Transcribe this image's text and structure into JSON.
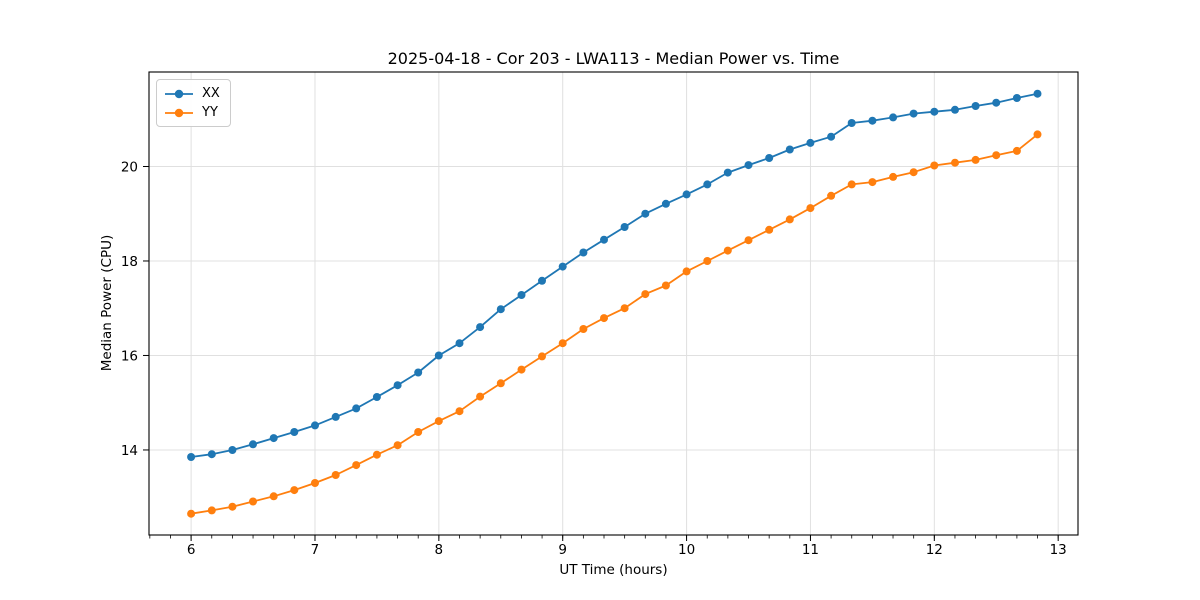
{
  "chart_data": {
    "type": "line",
    "title": "2025-04-18 - Cor 203 - LWA113 - Median Power vs. Time",
    "xlabel": "UT Time (hours)",
    "ylabel": "Median Power (CPU)",
    "x": [
      6.0,
      6.167,
      6.333,
      6.5,
      6.667,
      6.833,
      7.0,
      7.167,
      7.333,
      7.5,
      7.667,
      7.833,
      8.0,
      8.167,
      8.333,
      8.5,
      8.667,
      8.833,
      9.0,
      9.167,
      9.333,
      9.5,
      9.667,
      9.833,
      10.0,
      10.167,
      10.333,
      10.5,
      10.667,
      10.833,
      11.0,
      11.167,
      11.333,
      11.5,
      11.667,
      11.833,
      12.0,
      12.167,
      12.333,
      12.5,
      12.667,
      12.833
    ],
    "series": [
      {
        "name": "XX",
        "color": "#1f77b4",
        "values": [
          13.85,
          13.91,
          14.0,
          14.12,
          14.25,
          14.38,
          14.52,
          14.7,
          14.88,
          15.12,
          15.37,
          15.64,
          16.0,
          16.26,
          16.6,
          16.98,
          17.28,
          17.58,
          17.88,
          18.18,
          18.45,
          18.72,
          19.0,
          19.21,
          19.41,
          19.62,
          19.87,
          20.03,
          20.18,
          20.36,
          20.5,
          20.63,
          20.92,
          20.97,
          21.04,
          21.12,
          21.16,
          21.2,
          21.28,
          21.35,
          21.45,
          21.54
        ]
      },
      {
        "name": "YY",
        "color": "#ff7f0e",
        "values": [
          12.65,
          12.72,
          12.8,
          12.91,
          13.02,
          13.15,
          13.3,
          13.47,
          13.68,
          13.9,
          14.1,
          14.38,
          14.61,
          14.82,
          15.13,
          15.41,
          15.7,
          15.98,
          16.26,
          16.56,
          16.79,
          17.0,
          17.3,
          17.48,
          17.78,
          18.0,
          18.22,
          18.44,
          18.66,
          18.88,
          19.12,
          19.38,
          19.62,
          19.67,
          19.78,
          19.88,
          20.02,
          20.08,
          20.14,
          20.24,
          20.33,
          20.68
        ]
      }
    ],
    "xlim": [
      5.66,
      13.16
    ],
    "ylim": [
      12.2,
      22.0
    ],
    "xticks": [
      6,
      7,
      8,
      9,
      10,
      11,
      12,
      13
    ],
    "yticks": [
      14,
      16,
      18,
      20
    ],
    "minor_x_interval": 0.166667,
    "grid": true,
    "grid_color": "#e0e0e0",
    "legend_position": "upper-left",
    "marker": "circle"
  }
}
